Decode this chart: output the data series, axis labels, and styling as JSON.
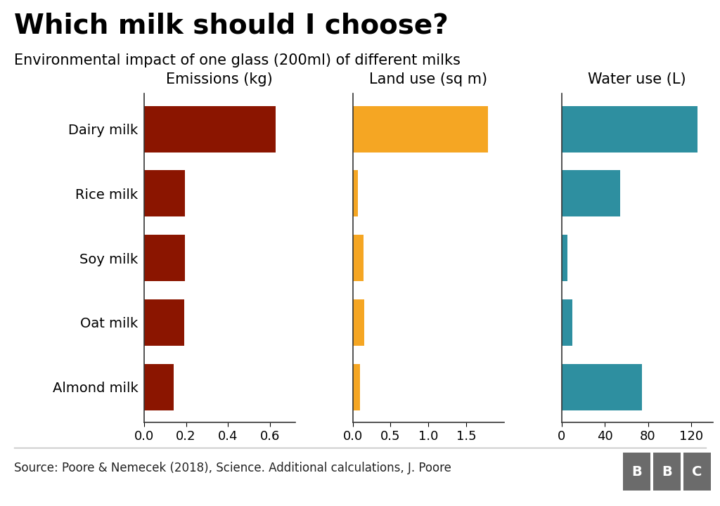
{
  "title": "Which milk should I choose?",
  "subtitle": "Environmental impact of one glass (200ml) of different milks",
  "source": "Source: Poore & Nemecek (2018), Science. Additional calculations, J. Poore",
  "categories": [
    "Dairy milk",
    "Rice milk",
    "Soy milk",
    "Oat milk",
    "Almond milk"
  ],
  "emissions": [
    0.628,
    0.194,
    0.195,
    0.19,
    0.14
  ],
  "land_use": [
    1.79,
    0.07,
    0.14,
    0.15,
    0.1
  ],
  "water_use": [
    125.6,
    54.0,
    5.6,
    9.8,
    74.3
  ],
  "emissions_color": "#8B1500",
  "land_use_color": "#F5A623",
  "water_use_color": "#2E8FA0",
  "emissions_label": "Emissions (kg)",
  "land_use_label": "Land use (sq m)",
  "water_use_label": "Water use (L)",
  "emissions_xlim": [
    0,
    0.72
  ],
  "land_use_xlim": [
    0,
    2.0
  ],
  "water_use_xlim": [
    0,
    140
  ],
  "emissions_xticks": [
    0.0,
    0.2,
    0.4,
    0.6
  ],
  "land_use_xticks": [
    0.0,
    0.5,
    1.0,
    1.5
  ],
  "water_use_xticks": [
    0,
    40,
    80,
    120
  ],
  "background_color": "#FFFFFF",
  "bar_height": 0.72,
  "title_fontsize": 28,
  "subtitle_fontsize": 15,
  "col_label_fontsize": 15,
  "tick_fontsize": 13,
  "source_fontsize": 12,
  "category_fontsize": 14
}
